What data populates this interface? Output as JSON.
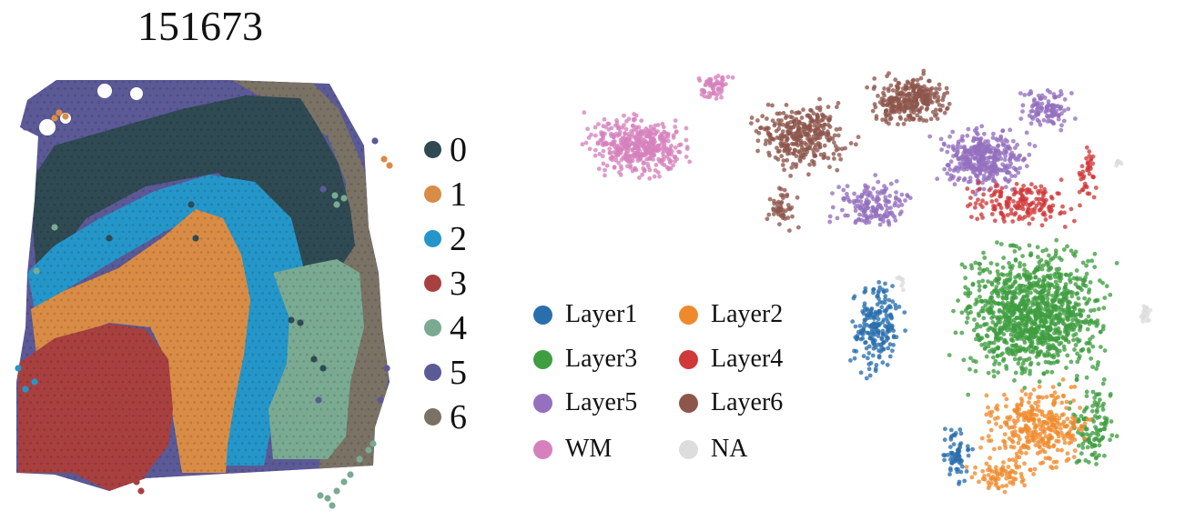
{
  "title": "151673",
  "chart_data": [
    {
      "type": "scatter",
      "subtype": "spatial-cluster-map",
      "title": "151673",
      "legend": {
        "placement": "right",
        "entries": [
          "0",
          "1",
          "2",
          "3",
          "4",
          "5",
          "6"
        ]
      },
      "series": [
        {
          "name": "0",
          "color": "#2f4a52"
        },
        {
          "name": "1",
          "color": "#d98c45"
        },
        {
          "name": "2",
          "color": "#2596c9"
        },
        {
          "name": "3",
          "color": "#a8403f"
        },
        {
          "name": "4",
          "color": "#7aaa92"
        },
        {
          "name": "5",
          "color": "#5b5996"
        },
        {
          "name": "6",
          "color": "#7b7266"
        }
      ],
      "grid": false,
      "axes": "hidden"
    },
    {
      "type": "scatter",
      "subtype": "embedding",
      "legend": {
        "placement": "left",
        "entries": [
          "Layer1",
          "Layer2",
          "Layer3",
          "Layer4",
          "Layer5",
          "Layer6",
          "WM",
          "NA"
        ]
      },
      "series": [
        {
          "name": "Layer1",
          "color": "#2a6fad"
        },
        {
          "name": "Layer2",
          "color": "#ef8a2c"
        },
        {
          "name": "Layer3",
          "color": "#3f9e40"
        },
        {
          "name": "Layer4",
          "color": "#d1383a"
        },
        {
          "name": "Layer5",
          "color": "#9470be"
        },
        {
          "name": "Layer6",
          "color": "#8d564b"
        },
        {
          "name": "WM",
          "color": "#d681bd"
        },
        {
          "name": "NA",
          "color": "#dddddd"
        }
      ],
      "grid": false,
      "axes": "hidden"
    }
  ]
}
